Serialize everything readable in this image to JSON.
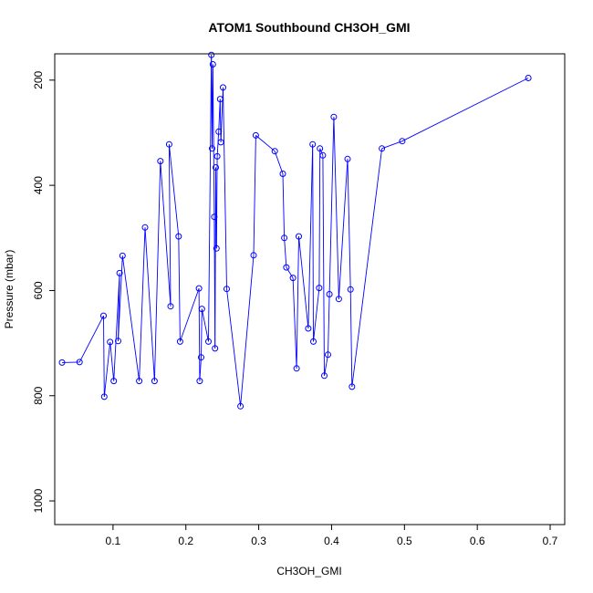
{
  "chart_data": {
    "type": "line",
    "title": "ATOM1 Southbound CH3OH_GMI",
    "xlabel": "CH3OH_GMI",
    "ylabel": "Pressure (mbar)",
    "xlim": [
      0.02,
      0.72
    ],
    "ylim": [
      1045,
      150
    ],
    "y_reversed": true,
    "xticks": [
      0.1,
      0.2,
      0.3,
      0.4,
      0.5,
      0.6,
      0.7
    ],
    "yticks": [
      200,
      400,
      600,
      800,
      1000
    ],
    "xtick_labels": [
      "0.1",
      "0.2",
      "0.3",
      "0.4",
      "0.5",
      "0.6",
      "0.7"
    ],
    "ytick_labels": [
      "200",
      "400",
      "600",
      "800",
      "1000"
    ],
    "legend": "none",
    "grid": false,
    "series_color": "#0000ff",
    "series": [
      {
        "x": [
          0.03,
          0.054,
          0.087,
          0.088,
          0.096,
          0.101,
          0.109,
          0.107,
          0.113,
          0.136,
          0.144,
          0.157,
          0.165,
          0.179,
          0.177,
          0.19,
          0.192,
          0.218,
          0.219,
          0.221,
          0.222,
          0.231,
          0.235,
          0.236,
          0.237,
          0.239,
          0.24,
          0.241,
          0.242,
          0.243,
          0.245,
          0.247,
          0.248,
          0.251,
          0.256,
          0.275,
          0.293,
          0.296,
          0.322,
          0.333,
          0.335,
          0.338,
          0.347,
          0.352,
          0.355,
          0.368,
          0.374,
          0.375,
          0.383,
          0.384,
          0.388,
          0.39,
          0.395,
          0.397,
          0.403,
          0.41,
          0.422,
          0.426,
          0.428,
          0.469,
          0.497,
          0.67
        ],
        "y": [
          737,
          736,
          648,
          802,
          698,
          772,
          567,
          696,
          534,
          772,
          480,
          772,
          354,
          630,
          322,
          497,
          697,
          596,
          772,
          727,
          635,
          697,
          152,
          330,
          170,
          460,
          710,
          366,
          520,
          345,
          298,
          236,
          318,
          214,
          597,
          820,
          533,
          305,
          335,
          378,
          500,
          556,
          576,
          748,
          497,
          672,
          322,
          697,
          595,
          330,
          343,
          762,
          722,
          607,
          270,
          616,
          350,
          598,
          783,
          330,
          316,
          196
        ]
      }
    ]
  }
}
